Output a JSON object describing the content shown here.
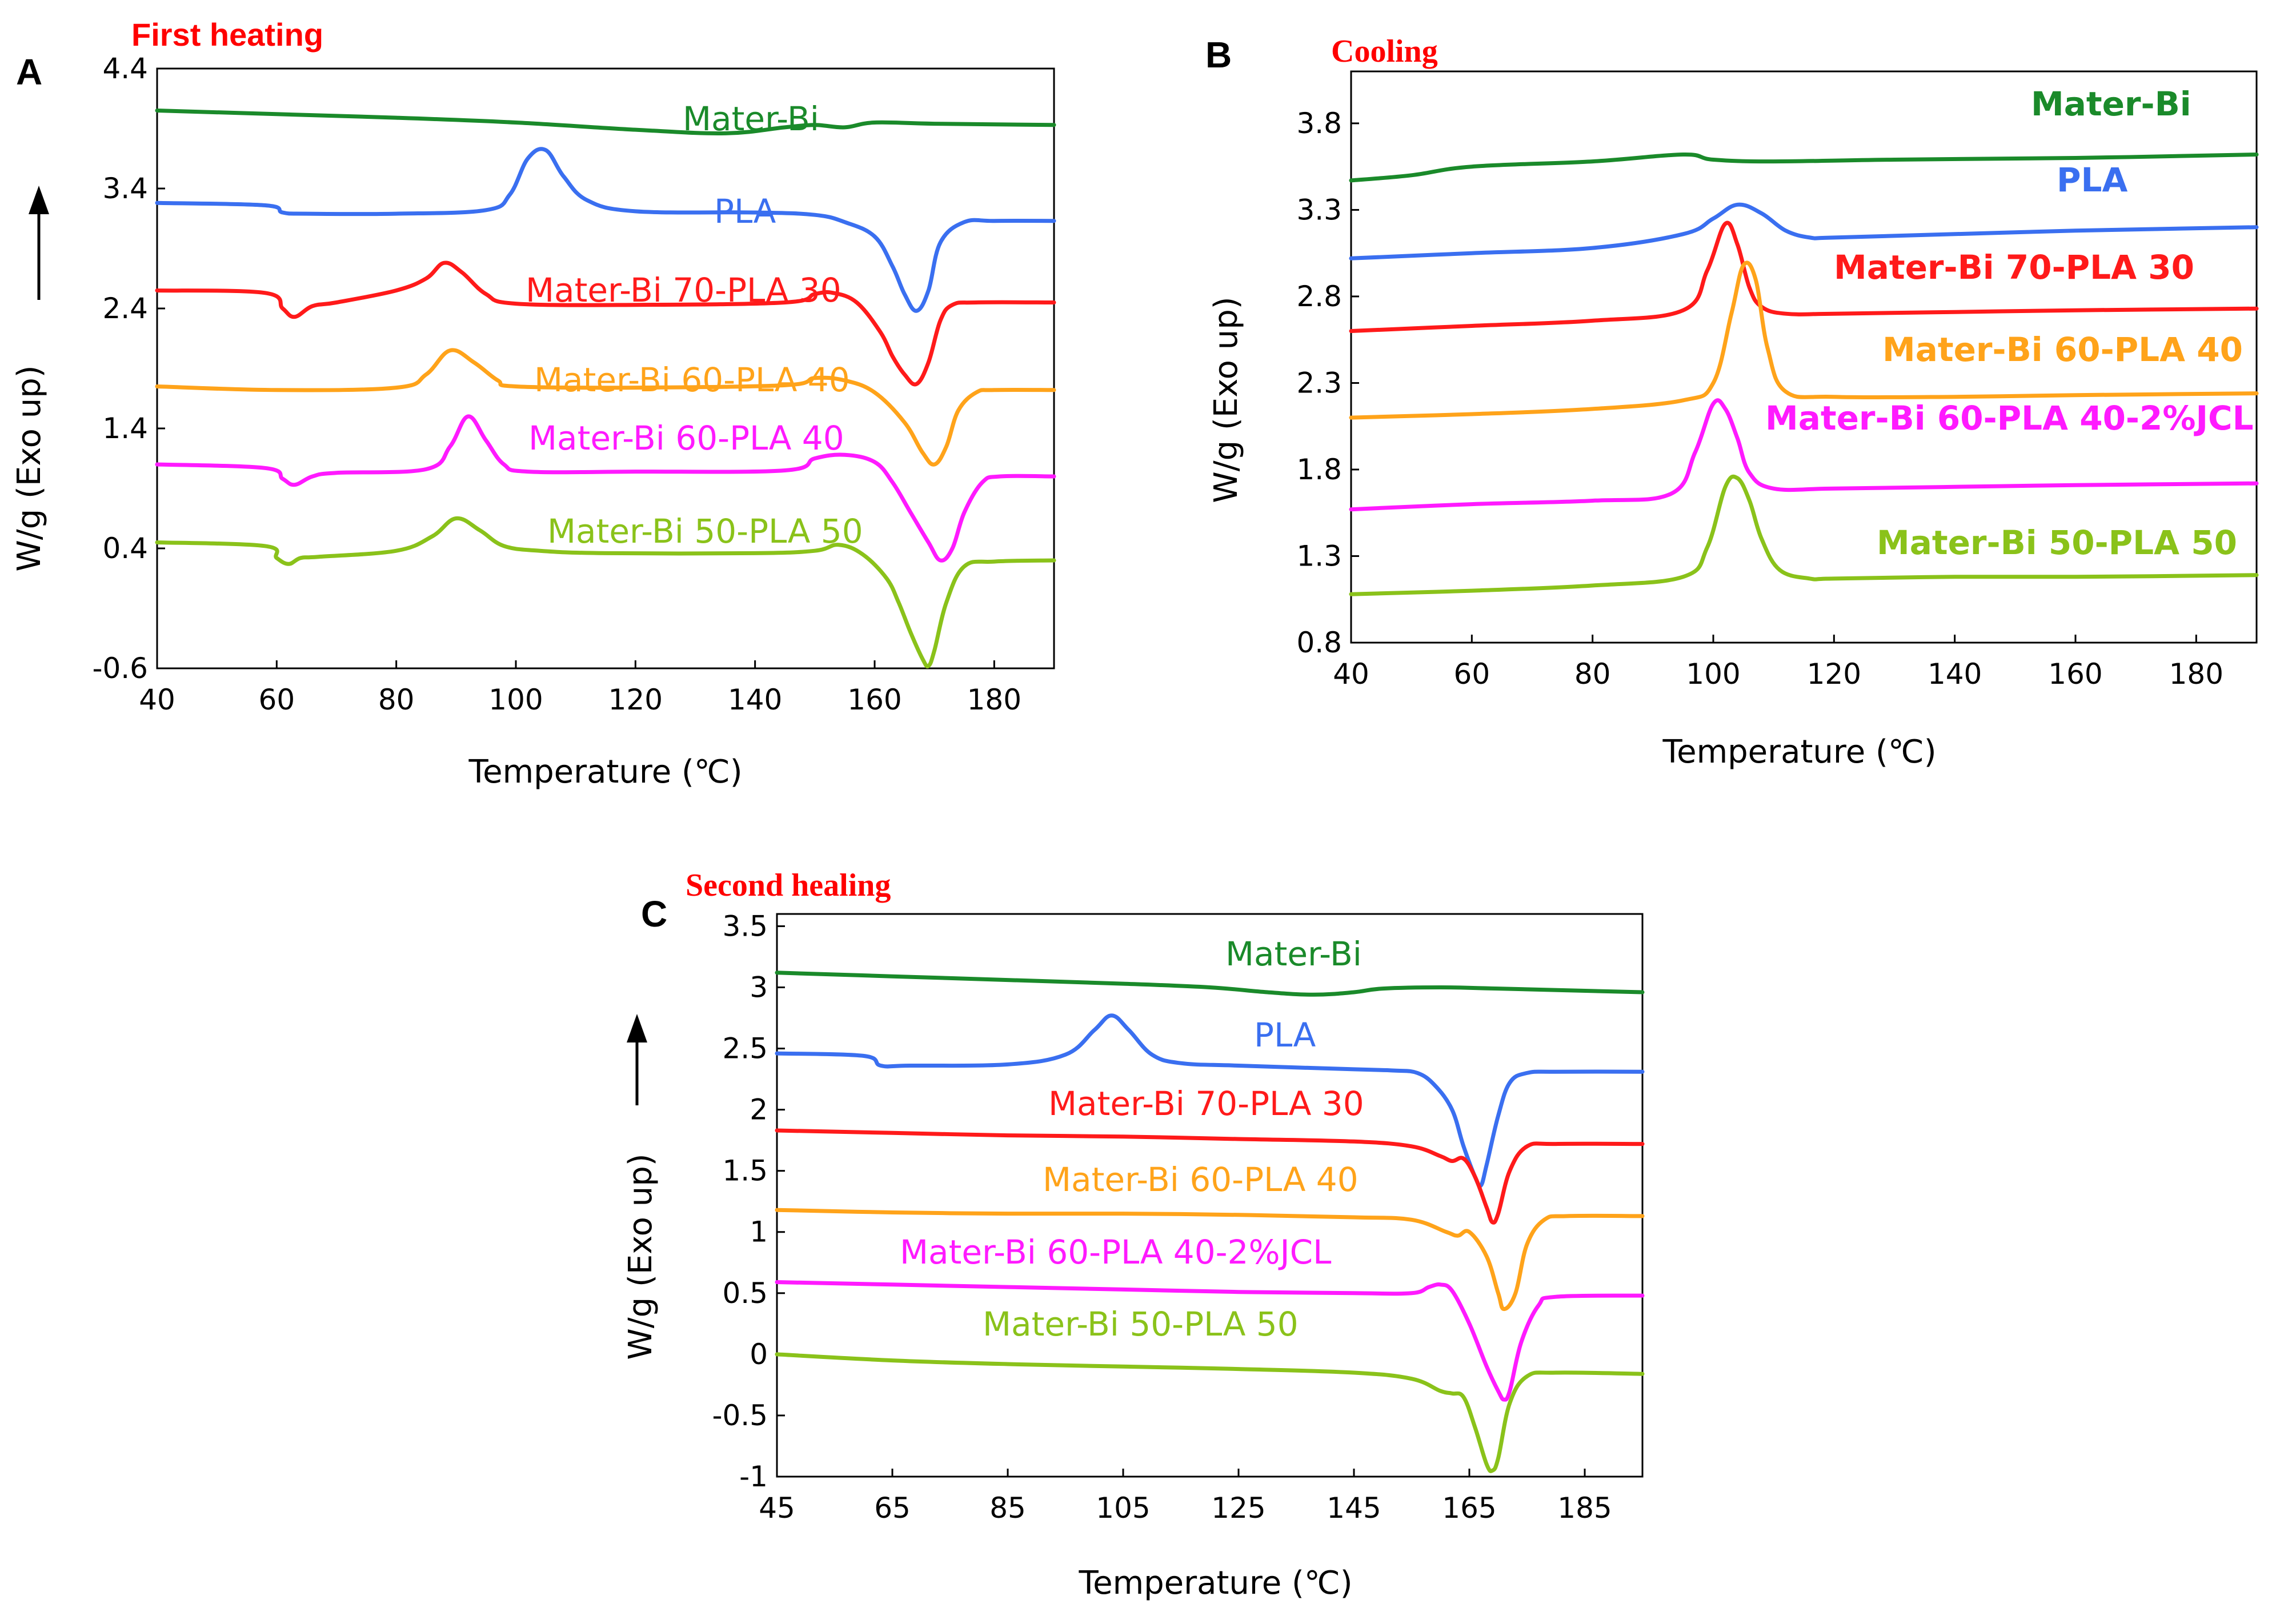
{
  "chart_data": [
    {
      "type": "line",
      "panel": "A",
      "title": "First heating",
      "xlabel": "Temperature (℃)",
      "ylabel": "W/g (Exo up)",
      "xlim": [
        40,
        190
      ],
      "ylim": [
        -0.6,
        4.4
      ],
      "xticks": [
        40,
        60,
        80,
        100,
        120,
        140,
        160,
        180
      ],
      "yticks": [
        -0.6,
        0.4,
        1.4,
        2.4,
        3.4,
        4.4
      ],
      "ytick_labels": [
        "-0.6",
        "0.4",
        "1.4",
        "2.4",
        "3.4",
        "4.4"
      ],
      "arrow": "up",
      "series": [
        {
          "name": "Mater-Bi",
          "color": "#1a8a2a",
          "x": [
            40,
            60,
            80,
            100,
            120,
            135,
            145,
            150,
            155,
            160,
            170,
            190
          ],
          "y": [
            4.05,
            4.02,
            3.99,
            3.95,
            3.89,
            3.86,
            3.91,
            3.93,
            3.91,
            3.95,
            3.94,
            3.93
          ]
        },
        {
          "name": "PLA",
          "color": "#3a6ff0",
          "x": [
            40,
            58,
            61,
            65,
            80,
            95,
            99,
            102,
            105,
            108,
            112,
            120,
            140,
            150,
            155,
            160,
            163,
            165,
            167,
            169,
            171,
            175,
            180,
            190
          ],
          "y": [
            3.28,
            3.26,
            3.2,
            3.19,
            3.19,
            3.22,
            3.35,
            3.65,
            3.72,
            3.5,
            3.3,
            3.21,
            3.2,
            3.18,
            3.12,
            3.0,
            2.75,
            2.52,
            2.38,
            2.55,
            2.95,
            3.12,
            3.13,
            3.13
          ]
        },
        {
          "name": "Mater-Bi 70-PLA 30",
          "color": "#ff1a1a",
          "x": [
            40,
            58,
            61,
            63,
            66,
            70,
            80,
            85,
            88,
            91,
            95,
            100,
            120,
            145,
            150,
            153,
            157,
            161,
            163,
            165,
            167,
            169,
            171,
            173,
            177,
            190
          ],
          "y": [
            2.55,
            2.53,
            2.4,
            2.33,
            2.42,
            2.45,
            2.55,
            2.65,
            2.78,
            2.7,
            2.52,
            2.44,
            2.43,
            2.45,
            2.52,
            2.53,
            2.45,
            2.2,
            2.0,
            1.85,
            1.77,
            1.95,
            2.3,
            2.43,
            2.45,
            2.45
          ]
        },
        {
          "name": "Mater-Bi 60-PLA 40",
          "color": "#ffa31a",
          "x": [
            40,
            60,
            80,
            85,
            89,
            93,
            97,
            100,
            120,
            145,
            150,
            155,
            160,
            165,
            168,
            170,
            172,
            174,
            177,
            180,
            190
          ],
          "y": [
            1.75,
            1.72,
            1.74,
            1.85,
            2.05,
            1.95,
            1.8,
            1.75,
            1.74,
            1.76,
            1.82,
            1.8,
            1.7,
            1.45,
            1.2,
            1.1,
            1.25,
            1.55,
            1.7,
            1.72,
            1.72
          ]
        },
        {
          "name": "Mater-Bi 60-PLA 40",
          "color": "#ff1aff",
          "x": [
            40,
            58,
            61,
            63,
            66,
            70,
            85,
            89,
            92,
            95,
            98,
            102,
            120,
            145,
            150,
            155,
            160,
            163,
            166,
            169,
            171,
            173,
            175,
            178,
            181,
            190
          ],
          "y": [
            1.1,
            1.07,
            0.98,
            0.93,
            1.0,
            1.03,
            1.06,
            1.25,
            1.5,
            1.3,
            1.1,
            1.04,
            1.04,
            1.05,
            1.15,
            1.18,
            1.12,
            0.95,
            0.7,
            0.45,
            0.3,
            0.4,
            0.7,
            0.95,
            1.0,
            1.0
          ]
        },
        {
          "name": "Mater-Bi 50-PLA 50",
          "color": "#8ac21a",
          "x": [
            40,
            58,
            60,
            62,
            64,
            67,
            80,
            86,
            90,
            94,
            98,
            104,
            115,
            140,
            150,
            154,
            158,
            162,
            164,
            166,
            168,
            169,
            170,
            172,
            175,
            180,
            190
          ],
          "y": [
            0.45,
            0.42,
            0.32,
            0.27,
            0.32,
            0.33,
            0.38,
            0.5,
            0.65,
            0.55,
            0.42,
            0.38,
            0.36,
            0.36,
            0.38,
            0.43,
            0.35,
            0.15,
            -0.05,
            -0.3,
            -0.52,
            -0.58,
            -0.45,
            -0.05,
            0.25,
            0.29,
            0.3
          ]
        }
      ]
    },
    {
      "type": "line",
      "panel": "B",
      "title": "Cooling",
      "xlabel": "Temperature (℃)",
      "ylabel": "W/g (Exo up)",
      "xlim": [
        40,
        190
      ],
      "ylim": [
        0.8,
        4.1
      ],
      "xticks": [
        40,
        60,
        80,
        100,
        120,
        140,
        160,
        180
      ],
      "yticks": [
        0.8,
        1.3,
        1.8,
        2.3,
        2.8,
        3.3,
        3.8
      ],
      "ytick_labels": [
        "0.8",
        "1.3",
        "1.8",
        "2.3",
        "2.8",
        "3.3",
        "3.8"
      ],
      "series": [
        {
          "name": "Mater-Bi",
          "color": "#1a8a2a",
          "x": [
            40,
            50,
            60,
            80,
            95,
            100,
            110,
            130,
            160,
            190
          ],
          "y": [
            3.47,
            3.5,
            3.55,
            3.58,
            3.62,
            3.59,
            3.58,
            3.59,
            3.6,
            3.62
          ]
        },
        {
          "name": "PLA",
          "color": "#3a6ff0",
          "x": [
            40,
            60,
            80,
            95,
            100,
            104,
            108,
            112,
            116,
            120,
            140,
            160,
            190
          ],
          "y": [
            3.02,
            3.05,
            3.08,
            3.16,
            3.25,
            3.33,
            3.28,
            3.18,
            3.14,
            3.14,
            3.16,
            3.18,
            3.2
          ]
        },
        {
          "name": "Mater-Bi 70-PLA 30",
          "color": "#ff1a1a",
          "x": [
            40,
            60,
            80,
            95,
            99,
            102,
            104,
            106,
            108,
            112,
            120,
            140,
            160,
            190
          ],
          "y": [
            2.6,
            2.63,
            2.66,
            2.72,
            2.95,
            3.22,
            3.1,
            2.85,
            2.74,
            2.7,
            2.7,
            2.71,
            2.72,
            2.73
          ]
        },
        {
          "name": "Mater-Bi 60-PLA 40",
          "color": "#ffa31a",
          "x": [
            40,
            60,
            80,
            95,
            100,
            103,
            105,
            107,
            109,
            112,
            120,
            140,
            160,
            190
          ],
          "y": [
            2.1,
            2.12,
            2.15,
            2.2,
            2.3,
            2.7,
            2.98,
            2.9,
            2.5,
            2.25,
            2.22,
            2.22,
            2.23,
            2.24
          ]
        },
        {
          "name": "Mater-Bi 60-PLA 40-2%JCL",
          "color": "#ff1aff",
          "x": [
            40,
            60,
            80,
            93,
            97,
            100,
            102,
            104,
            106,
            110,
            120,
            140,
            160,
            190
          ],
          "y": [
            1.57,
            1.6,
            1.62,
            1.66,
            1.9,
            2.18,
            2.15,
            1.98,
            1.78,
            1.69,
            1.69,
            1.7,
            1.71,
            1.72
          ]
        },
        {
          "name": "Mater-Bi 50-PLA 50",
          "color": "#8ac21a",
          "x": [
            40,
            60,
            80,
            95,
            99,
            102,
            104,
            106,
            108,
            111,
            116,
            120,
            140,
            160,
            190
          ],
          "y": [
            1.08,
            1.1,
            1.13,
            1.18,
            1.35,
            1.7,
            1.75,
            1.62,
            1.4,
            1.22,
            1.17,
            1.17,
            1.18,
            1.18,
            1.19
          ]
        }
      ]
    },
    {
      "type": "line",
      "panel": "C",
      "title": "Second healing",
      "xlabel": "Temperature (℃)",
      "ylabel": "W/g (Exo up)",
      "xlim": [
        45,
        195
      ],
      "ylim": [
        -1,
        3.6
      ],
      "xticks": [
        45,
        65,
        85,
        105,
        125,
        145,
        165,
        185
      ],
      "yticks": [
        -1,
        -0.5,
        0,
        0.5,
        1,
        1.5,
        2,
        2.5,
        3,
        3.5
      ],
      "ytick_labels": [
        "-1",
        "-0.5",
        "0",
        "0.5",
        "1",
        "1.5",
        "2",
        "2.5",
        "3",
        "3.5"
      ],
      "arrow": "up",
      "series": [
        {
          "name": "Mater-Bi",
          "color": "#1a8a2a",
          "x": [
            45,
            65,
            85,
            105,
            120,
            130,
            138,
            145,
            150,
            160,
            170,
            195
          ],
          "y": [
            3.12,
            3.09,
            3.06,
            3.03,
            3.0,
            2.96,
            2.94,
            2.96,
            2.99,
            3.0,
            2.99,
            2.96
          ]
        },
        {
          "name": "PLA",
          "color": "#3a6ff0",
          "x": [
            45,
            60,
            63,
            68,
            85,
            95,
            100,
            103,
            106,
            110,
            115,
            125,
            145,
            152,
            156,
            159,
            162,
            164,
            166,
            167,
            168,
            170,
            172,
            175,
            180,
            195
          ],
          "y": [
            2.46,
            2.44,
            2.36,
            2.36,
            2.37,
            2.45,
            2.65,
            2.77,
            2.65,
            2.45,
            2.38,
            2.36,
            2.33,
            2.32,
            2.3,
            2.2,
            2.0,
            1.7,
            1.45,
            1.38,
            1.55,
            1.95,
            2.22,
            2.3,
            2.31,
            2.31
          ]
        },
        {
          "name": "Mater-Bi 70-PLA 30",
          "color": "#ff1a1a",
          "x": [
            45,
            65,
            85,
            105,
            125,
            145,
            155,
            160,
            162,
            164,
            166,
            168,
            169,
            170,
            172,
            175,
            180,
            195
          ],
          "y": [
            1.83,
            1.81,
            1.79,
            1.78,
            1.76,
            1.74,
            1.7,
            1.62,
            1.58,
            1.6,
            1.45,
            1.2,
            1.08,
            1.15,
            1.5,
            1.7,
            1.72,
            1.72
          ]
        },
        {
          "name": "Mater-Bi 60-PLA 40",
          "color": "#ffa31a",
          "x": [
            45,
            65,
            85,
            105,
            125,
            145,
            155,
            161,
            163,
            165,
            168,
            170,
            171,
            173,
            175,
            178,
            182,
            195
          ],
          "y": [
            1.18,
            1.16,
            1.15,
            1.15,
            1.14,
            1.12,
            1.1,
            1.0,
            0.97,
            1.0,
            0.8,
            0.5,
            0.37,
            0.5,
            0.9,
            1.1,
            1.13,
            1.13
          ]
        },
        {
          "name": "Mater-Bi 60-PLA 40-2%JCL",
          "color": "#ff1aff",
          "x": [
            45,
            65,
            85,
            105,
            125,
            145,
            155,
            158,
            160,
            162,
            165,
            168,
            170,
            171,
            172,
            174,
            177,
            180,
            195
          ],
          "y": [
            0.59,
            0.57,
            0.55,
            0.53,
            0.51,
            0.5,
            0.5,
            0.55,
            0.57,
            0.52,
            0.25,
            -0.1,
            -0.3,
            -0.37,
            -0.3,
            0.1,
            0.4,
            0.47,
            0.48
          ]
        },
        {
          "name": "Mater-Bi 50-PLA 50",
          "color": "#8ac21a",
          "x": [
            45,
            65,
            85,
            105,
            125,
            145,
            155,
            160,
            162,
            164,
            166,
            168,
            169,
            170,
            172,
            175,
            180,
            195
          ],
          "y": [
            0,
            -0.05,
            -0.08,
            -0.1,
            -0.12,
            -0.15,
            -0.2,
            -0.3,
            -0.32,
            -0.35,
            -0.6,
            -0.9,
            -0.95,
            -0.85,
            -0.4,
            -0.18,
            -0.15,
            -0.16
          ]
        }
      ]
    }
  ]
}
